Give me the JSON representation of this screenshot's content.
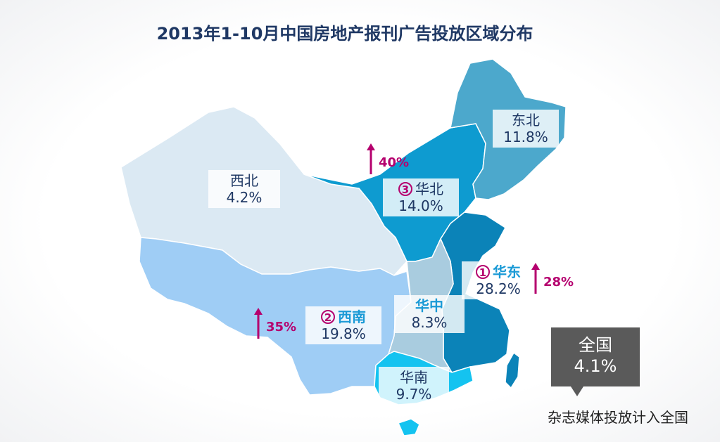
{
  "title": "2013年1-10月中国房地产报刊广告投放区域分布",
  "colors": {
    "northwest": "#dbe9f3",
    "southwest": "#9fcdf5",
    "north": "#0e9bd0",
    "northeast": "#4ca8cc",
    "central": "#a9ccdf",
    "east": "#0b83b8",
    "south": "#14c3f0",
    "highlight_text": "#1a9ad6",
    "accent": "#b5006e"
  },
  "regions": [
    {
      "id": "northwest",
      "name": "西北",
      "share": "4.2%",
      "rank": "",
      "highlight": false
    },
    {
      "id": "north",
      "name": "华北",
      "share": "14.0%",
      "rank": "3",
      "highlight": false
    },
    {
      "id": "northeast",
      "name": "东北",
      "share": "11.8%",
      "rank": "",
      "highlight": false
    },
    {
      "id": "east",
      "name": "华东",
      "share": "28.2%",
      "rank": "1",
      "highlight": true
    },
    {
      "id": "central",
      "name": "华中",
      "share": "8.3%",
      "rank": "",
      "highlight": true
    },
    {
      "id": "southwest",
      "name": "西南",
      "share": "19.8%",
      "rank": "2",
      "highlight": true
    },
    {
      "id": "south",
      "name": "华南",
      "share": "9.7%",
      "rank": "",
      "highlight": false
    }
  ],
  "growth": {
    "north": "40%",
    "east": "28%",
    "southwest": "35%"
  },
  "national": {
    "label": "全国",
    "share": "4.1%",
    "note": "杂志媒体投放计入全国"
  }
}
